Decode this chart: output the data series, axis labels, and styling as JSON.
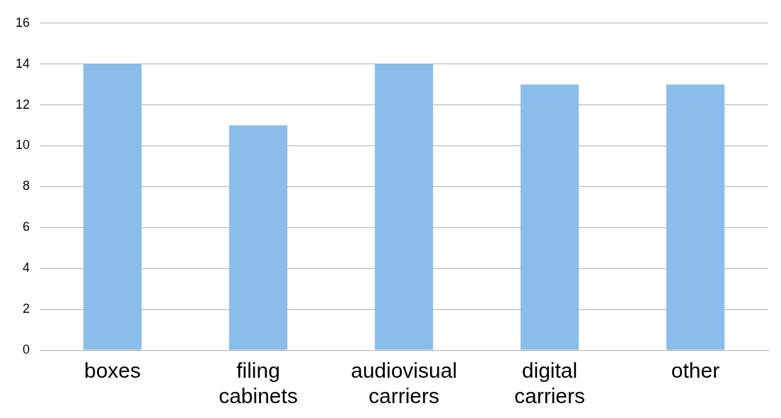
{
  "chart_data": {
    "type": "bar",
    "categories": [
      "boxes",
      "filing cabinets",
      "audiovisual carriers",
      "digital carriers",
      "other"
    ],
    "values": [
      14,
      11,
      14,
      13,
      13
    ],
    "color": "#8bbdea",
    "ylim": [
      0,
      16
    ],
    "yticks": [
      0,
      2,
      4,
      6,
      8,
      10,
      12,
      14,
      16
    ],
    "grid": "y",
    "legend": false
  }
}
